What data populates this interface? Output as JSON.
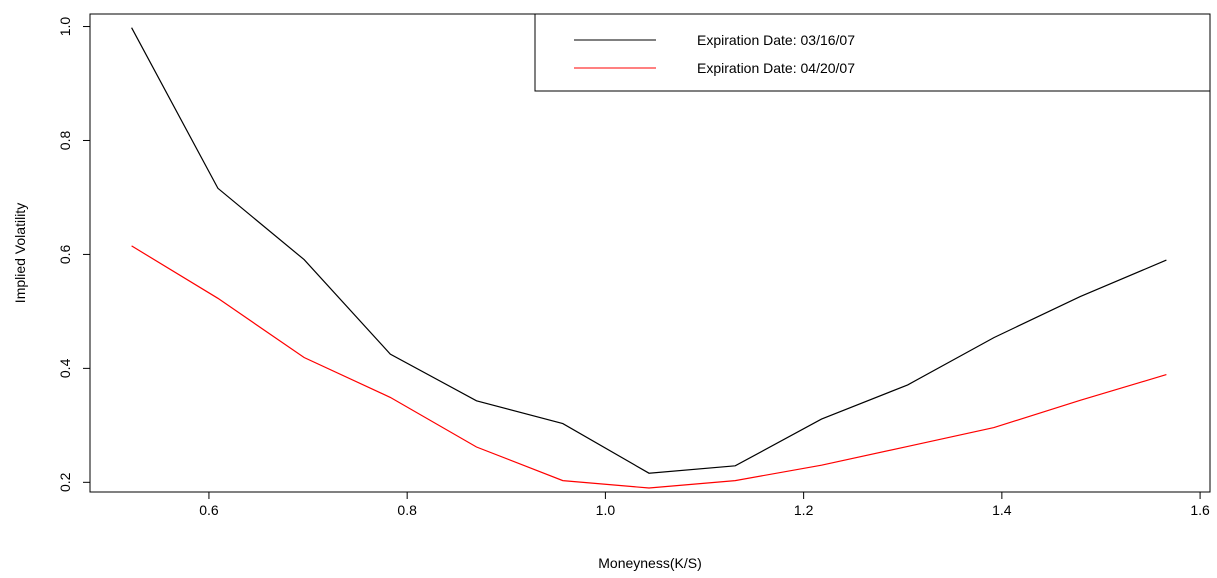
{
  "chart_data": {
    "type": "line",
    "title": "",
    "xlabel": "Moneyness(K/S)",
    "ylabel": "Implied Volatility",
    "xlim": [
      0.48,
      1.61
    ],
    "ylim": [
      0.183,
      1.022
    ],
    "xticks": [
      0.6,
      0.8,
      1.0,
      1.2,
      1.4,
      1.6
    ],
    "xtick_labels": [
      "0.6",
      "0.8",
      "1.0",
      "1.2",
      "1.4",
      "1.6"
    ],
    "yticks": [
      0.2,
      0.4,
      0.6,
      0.8,
      1.0
    ],
    "ytick_labels": [
      "0.2",
      "0.4",
      "0.6",
      "0.8",
      "1.0"
    ],
    "grid": false,
    "legend_position": "top-right",
    "series": [
      {
        "name": "Expiration Date: 03/16/07",
        "color": "#000000",
        "x": [
          0.522,
          0.609,
          0.696,
          0.783,
          0.87,
          0.957,
          1.044,
          1.131,
          1.218,
          1.305,
          1.392,
          1.479,
          1.566
        ],
        "y": [
          0.998,
          0.716,
          0.591,
          0.425,
          0.343,
          0.303,
          0.216,
          0.229,
          0.311,
          0.371,
          0.454,
          0.526,
          0.59
        ]
      },
      {
        "name": "Expiration Date: 04/20/07",
        "color": "#ff0000",
        "x": [
          0.522,
          0.609,
          0.696,
          0.783,
          0.87,
          0.957,
          1.044,
          1.131,
          1.218,
          1.305,
          1.392,
          1.479,
          1.566
        ],
        "y": [
          0.615,
          0.523,
          0.419,
          0.349,
          0.262,
          0.203,
          0.19,
          0.203,
          0.23,
          0.263,
          0.296,
          0.344,
          0.389
        ]
      }
    ]
  }
}
